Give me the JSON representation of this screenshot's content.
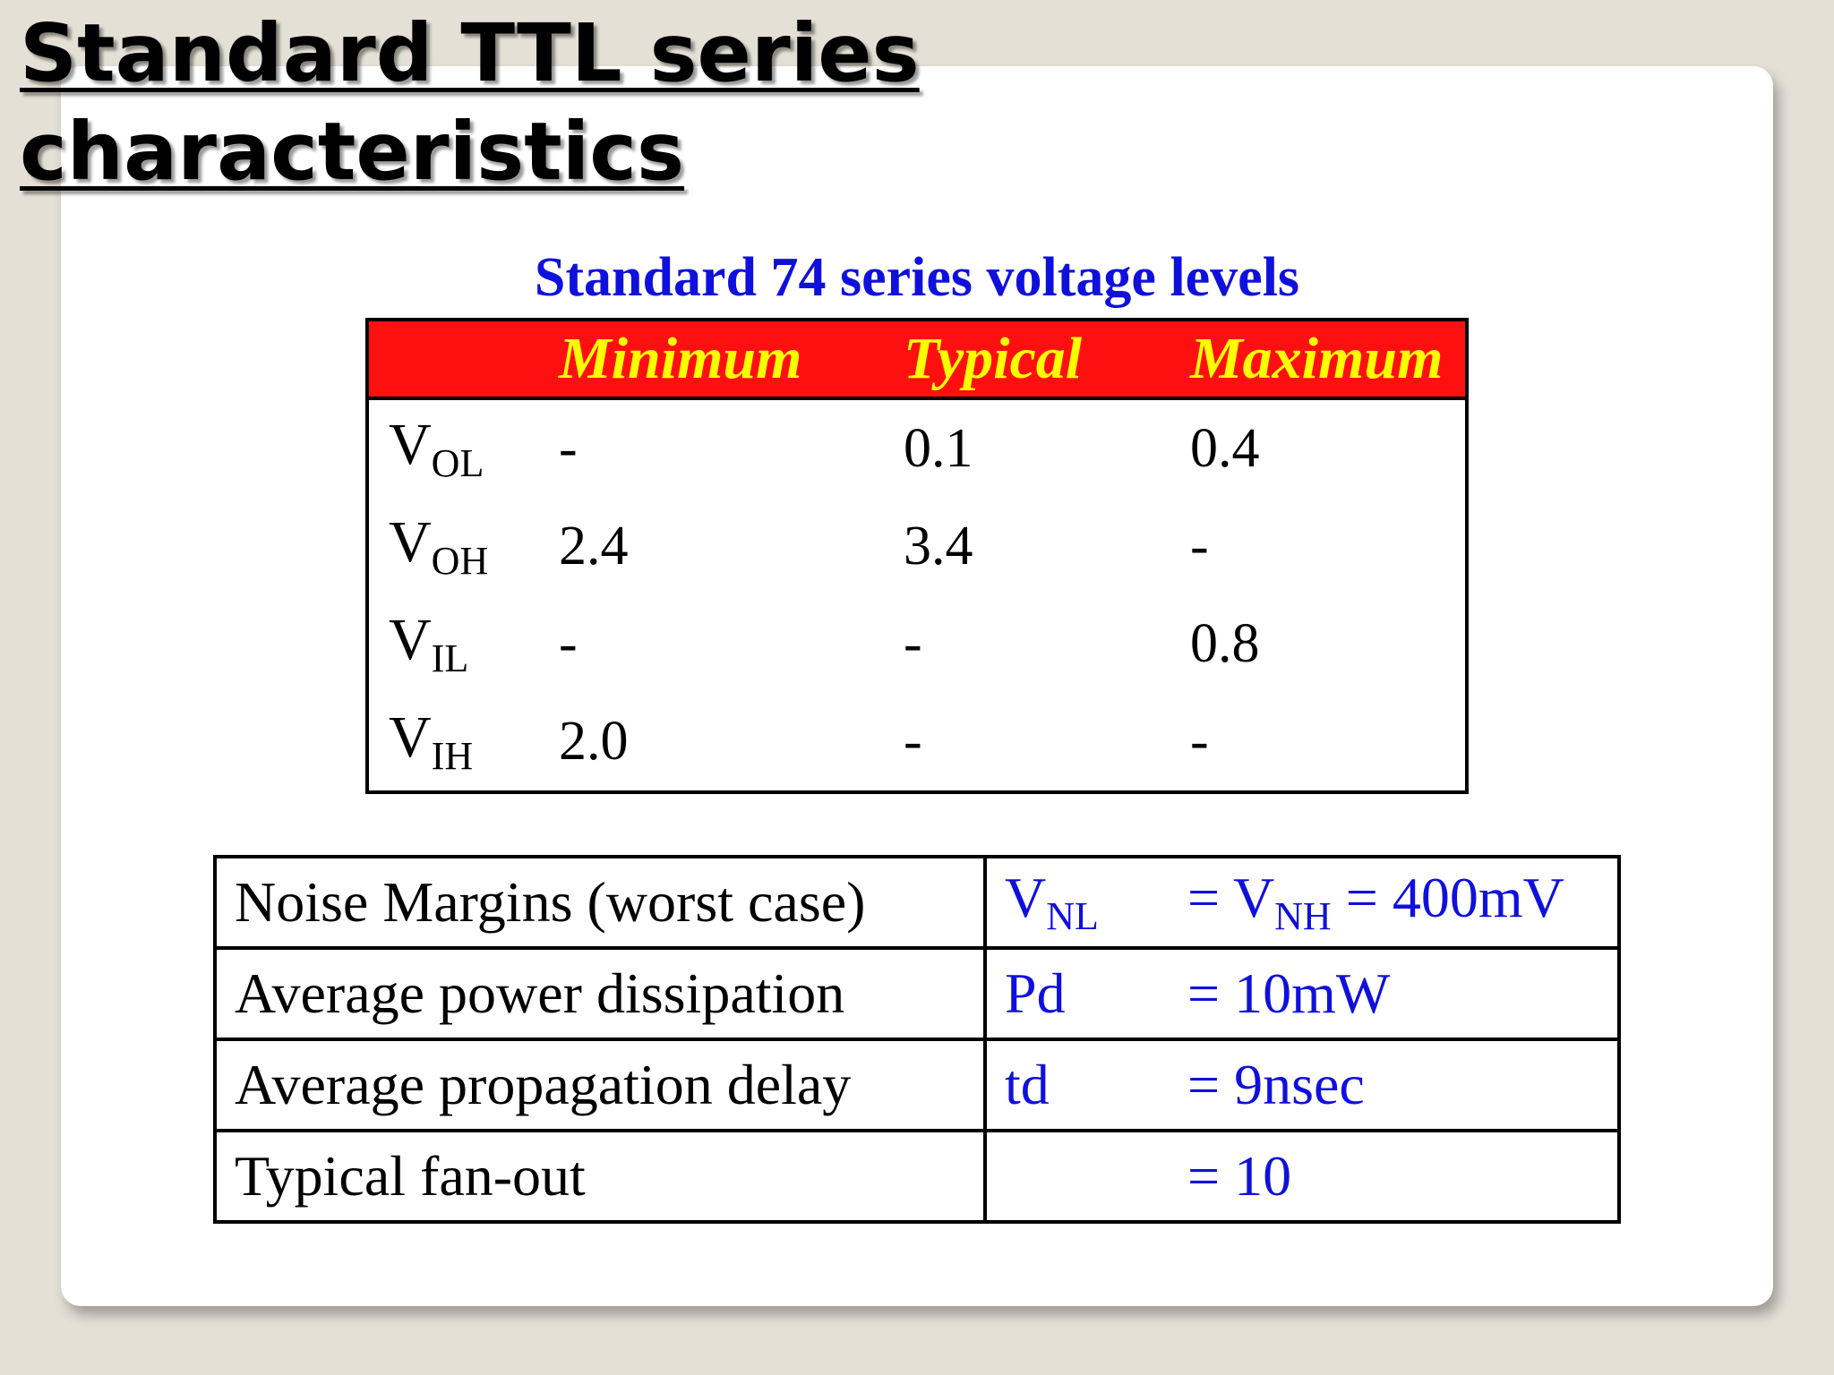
{
  "slide": {
    "title_line1": "Standard TTL series",
    "title_line2": "characteristics"
  },
  "voltage_levels": {
    "caption": "Standard 74 series voltage levels",
    "headers": [
      "",
      "Minimum",
      "Typical",
      "Maximum"
    ],
    "rows": [
      {
        "sym": "V",
        "sub": "OL",
        "min": "-",
        "typ": "0.1",
        "max": "0.4"
      },
      {
        "sym": "V",
        "sub": "OH",
        "min": "2.4",
        "typ": "3.4",
        "max": "-"
      },
      {
        "sym": "V",
        "sub": "IL",
        "min": "-",
        "typ": "-",
        "max": "0.8"
      },
      {
        "sym": "V",
        "sub": "IH",
        "min": "2.0",
        "typ": "-",
        "max": "-"
      }
    ]
  },
  "characteristics": {
    "rows": [
      {
        "label": "Noise Margins (worst case)",
        "symbol": "V",
        "symbol_sub": "NL",
        "value": "= V",
        "value_sub": "NH",
        "value_tail": " = 400mV"
      },
      {
        "label": "Average power dissipation",
        "symbol": "Pd",
        "value": "= 10mW"
      },
      {
        "label": "Average propagation delay",
        "symbol": "td",
        "value": "= 9nsec"
      },
      {
        "label": "Typical fan-out",
        "symbol": "",
        "value": "= 10"
      }
    ]
  },
  "colors": {
    "title_blue": "#1010dd",
    "header_red": "#ff1010",
    "header_yellow": "#ffff00",
    "background": "#e4e0d6"
  }
}
